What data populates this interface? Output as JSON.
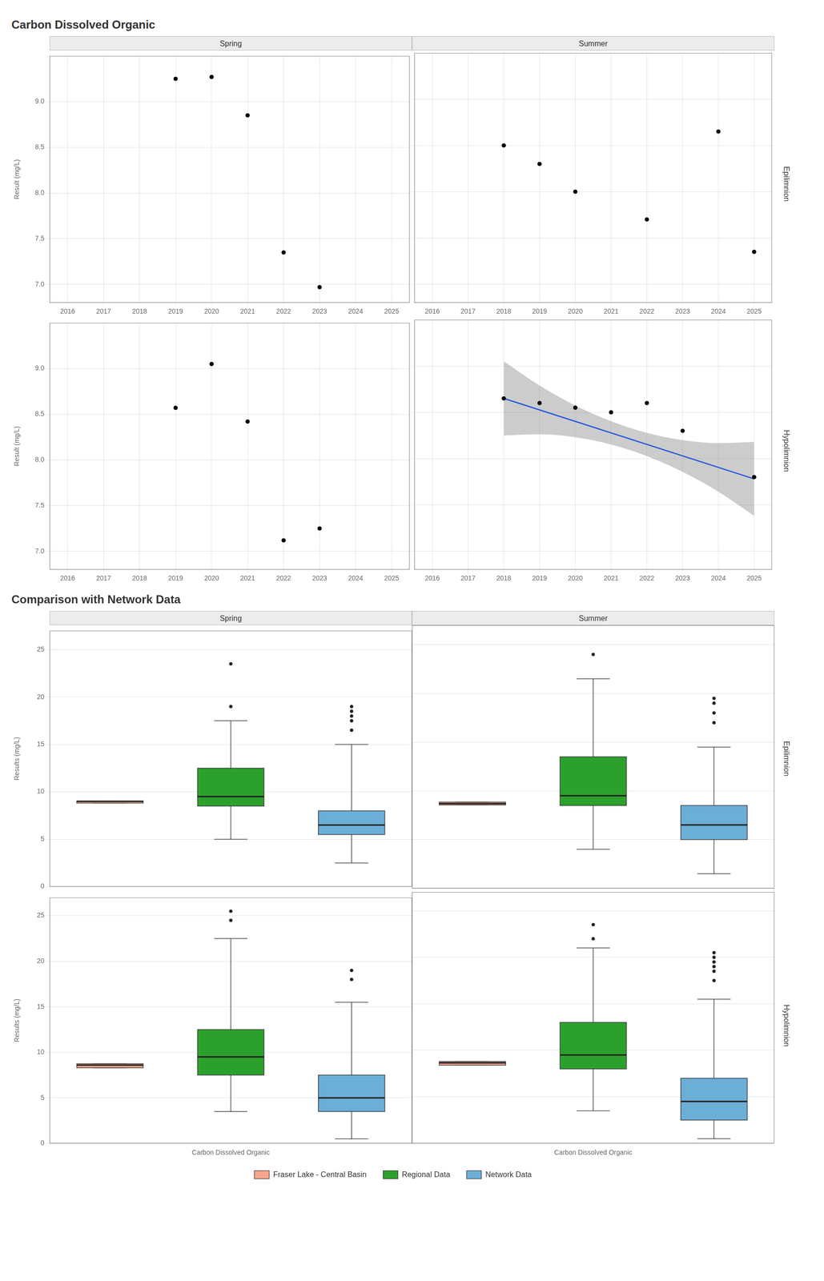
{
  "chart_data": [
    {
      "type": "scatter",
      "title": "Carbon Dissolved Organic",
      "subtitle": "Spring",
      "ylabel": "Result (mg/L)",
      "series": [
        {
          "type": "scatter",
          "color": "#000000",
          "x": [
            2019,
            2020,
            2021,
            2022,
            2023,
            2024
          ],
          "values": [
            9.25,
            9.27,
            8.85,
            7.35,
            6.97,
            null
          ]
        }
      ],
      "xlim": [
        2015.5,
        2025.5
      ],
      "xticks": [
        2016,
        2017,
        2018,
        2019,
        2020,
        2021,
        2022,
        2023,
        2024,
        2025
      ],
      "ylim": [
        6.8,
        9.5
      ],
      "yticks": [
        {
          "value": 7,
          "label": "7.0"
        },
        7.5,
        {
          "value": 8,
          "label": "8.0"
        },
        8.5,
        {
          "value": 9,
          "label": "9.0"
        }
      ],
      "grid": true
    },
    {
      "type": "scatter",
      "subtitle": "Summer",
      "annotations": [
        "Epilimnion"
      ],
      "series": [
        {
          "type": "scatter",
          "color": "#000000",
          "x": [
            2018,
            2019,
            2020,
            2022,
            2024,
            2025
          ],
          "values": [
            8.5,
            8.3,
            8.0,
            7.7,
            8.65,
            7.35
          ]
        }
      ],
      "xlim": [
        2015.5,
        2025.5
      ],
      "xticks": [
        2016,
        2017,
        2018,
        2019,
        2020,
        2021,
        2022,
        2023,
        2024,
        2025
      ],
      "ylim": [
        6.8,
        9.5
      ],
      "yticks": [
        {
          "value": 7,
          "label": "7.0"
        },
        7.5,
        {
          "value": 8,
          "label": "8.0"
        },
        8.5,
        {
          "value": 9,
          "label": "9.0"
        }
      ],
      "grid": true,
      "tick_labels": "x"
    },
    {
      "type": "scatter",
      "ylabel": "Result (mg/L)",
      "series": [
        {
          "type": "scatter",
          "color": "#000000",
          "x": [
            2019,
            2020,
            2021,
            2022,
            2023,
            2024
          ],
          "values": [
            8.57,
            9.05,
            8.42,
            7.12,
            7.25,
            null
          ]
        }
      ],
      "xlim": [
        2015.5,
        2025.5
      ],
      "xticks": [
        2016,
        2017,
        2018,
        2019,
        2020,
        2021,
        2022,
        2023,
        2024,
        2025
      ],
      "ylim": [
        6.8,
        9.5
      ],
      "yticks": [
        {
          "value": 7,
          "label": "7.0"
        },
        7.5,
        {
          "value": 8,
          "label": "8.0"
        },
        8.5,
        {
          "value": 9,
          "label": "9.0"
        }
      ],
      "grid": true
    },
    {
      "type": "scatter",
      "annotations": [
        "Hypolimnion"
      ],
      "series": [
        {
          "type": "scatter",
          "color": "#000000",
          "x": [
            2018,
            2019,
            2020,
            2021,
            2022,
            2023,
            2025
          ],
          "values": [
            8.65,
            8.6,
            8.55,
            8.5,
            8.6,
            8.3,
            7.8
          ]
        },
        {
          "type": "line",
          "color": "#2255dd",
          "x": [
            2018,
            2025
          ],
          "values": [
            8.65,
            7.78
          ]
        },
        {
          "type": "band",
          "color": "#808080",
          "x": [
            2018,
            2019,
            2020,
            2021,
            2022,
            2023,
            2024,
            2025
          ],
          "lower": [
            8.25,
            8.262857,
            8.23,
            8.151429,
            8.027143,
            7.857143,
            7.641429,
            7.38
          ],
          "upper": [
            9.05,
            8.788571,
            8.572857,
            8.402857,
            8.278571,
            8.2,
            8.167143,
            8.18
          ]
        }
      ],
      "xlim": [
        2015.5,
        2025.5
      ],
      "xticks": [
        2016,
        2017,
        2018,
        2019,
        2020,
        2021,
        2022,
        2023,
        2024,
        2025
      ],
      "ylim": [
        6.8,
        9.5
      ],
      "yticks": [
        {
          "value": 7,
          "label": "7.0"
        },
        7.5,
        {
          "value": 8,
          "label": "8.0"
        },
        8.5,
        {
          "value": 9,
          "label": "9.0"
        }
      ],
      "grid": true,
      "tick_labels": "x"
    },
    {
      "type": "box",
      "title": "Comparison with Network Data",
      "subtitle": "Spring",
      "ylabel": "Results (mg/L)",
      "categories": [
        null,
        null,
        null
      ],
      "series": [
        {
          "name": "Fraser Lake - Central Basin",
          "color": "#f4a58a",
          "values": [
            {
              "q1": 8.82,
              "median": 9.0,
              "q3": 9.05,
              "whislo": 8.82,
              "whishi": 9.05,
              "fliers": []
            },
            null,
            null
          ]
        },
        {
          "name": "Regional Data",
          "color": "#2ca02c",
          "values": [
            null,
            {
              "q1": 8.5,
              "median": 9.5,
              "q3": 12.5,
              "whislo": 5.0,
              "whishi": 17.5,
              "fliers": [
                19.0,
                23.5
              ]
            },
            null
          ]
        },
        {
          "name": "Network Data",
          "color": "#6baed6",
          "values": [
            null,
            null,
            {
              "q1": 5.5,
              "median": 6.5,
              "q3": 8.0,
              "whislo": 2.5,
              "whishi": 15.0,
              "fliers": [
                16.5,
                17.5,
                18.0,
                18.5,
                19.0
              ]
            }
          ]
        }
      ],
      "ylim": [
        0,
        27
      ],
      "yticks": [
        0,
        5,
        10,
        15,
        20,
        25
      ],
      "grid": "y",
      "tick_labels": "y"
    },
    {
      "type": "box",
      "subtitle": "Summer",
      "annotations": [
        "Epilimnion"
      ],
      "categories": [
        null,
        null,
        null
      ],
      "series": [
        {
          "name": "Fraser Lake - Central Basin",
          "color": "#f4a58a",
          "values": [
            {
              "q1": 8.55,
              "median": 8.7,
              "q3": 8.85,
              "whislo": 8.55,
              "whishi": 8.85,
              "fliers": []
            },
            null,
            null
          ]
        },
        {
          "name": "Regional Data",
          "color": "#2ca02c",
          "values": [
            null,
            {
              "q1": 8.5,
              "median": 9.5,
              "q3": 13.5,
              "whislo": 4.0,
              "whishi": 21.5,
              "fliers": [
                24.0
              ]
            },
            null
          ]
        },
        {
          "name": "Network Data",
          "color": "#6baed6",
          "values": [
            null,
            null,
            {
              "q1": 5.0,
              "median": 6.5,
              "q3": 8.5,
              "whislo": 1.5,
              "whishi": 14.5,
              "fliers": [
                17.0,
                18.0,
                19.0,
                19.5
              ]
            }
          ]
        }
      ],
      "ylim": [
        0,
        27
      ],
      "yticks": [
        0,
        5,
        10,
        15,
        20,
        25
      ],
      "grid": "y",
      "tick_labels": false
    },
    {
      "type": "box",
      "ylabel": "Results (mg/L)",
      "xlabel": "Carbon Dissolved Organic",
      "categories": [
        null,
        null,
        null
      ],
      "series": [
        {
          "name": "Fraser Lake - Central Basin",
          "color": "#f4a58a",
          "values": [
            {
              "q1": 8.3,
              "median": 8.6,
              "q3": 8.75,
              "whislo": 8.3,
              "whishi": 8.75,
              "fliers": []
            },
            null,
            null
          ]
        },
        {
          "name": "Regional Data",
          "color": "#2ca02c",
          "values": [
            null,
            {
              "q1": 7.5,
              "median": 9.5,
              "q3": 12.5,
              "whislo": 3.5,
              "whishi": 22.5,
              "fliers": [
                24.5,
                25.5
              ]
            },
            null
          ]
        },
        {
          "name": "Network Data",
          "color": "#6baed6",
          "values": [
            null,
            null,
            {
              "q1": 3.5,
              "median": 5.0,
              "q3": 7.5,
              "whislo": 0.5,
              "whishi": 15.5,
              "fliers": [
                18.0,
                19.0
              ]
            }
          ]
        }
      ],
      "ylim": [
        0,
        27
      ],
      "yticks": [
        0,
        5,
        10,
        15,
        20,
        25
      ],
      "grid": "y",
      "tick_labels": "y"
    },
    {
      "type": "box",
      "xlabel": "Carbon Dissolved Organic",
      "annotations": [
        "Hypolimnion"
      ],
      "categories": [
        null,
        null,
        null
      ],
      "series": [
        {
          "name": "Fraser Lake - Central Basin",
          "color": "#f4a58a",
          "values": [
            {
              "q1": 8.4,
              "median": 8.65,
              "q3": 8.8,
              "whislo": 8.4,
              "whishi": 8.8,
              "fliers": []
            },
            null,
            null
          ]
        },
        {
          "name": "Regional Data",
          "color": "#2ca02c",
          "values": [
            null,
            {
              "q1": 8.0,
              "median": 9.5,
              "q3": 13.0,
              "whislo": 3.5,
              "whishi": 21.0,
              "fliers": [
                22.0,
                23.5
              ]
            },
            null
          ]
        },
        {
          "name": "Network Data",
          "color": "#6baed6",
          "values": [
            null,
            null,
            {
              "q1": 2.5,
              "median": 4.5,
              "q3": 7.0,
              "whislo": 0.5,
              "whishi": 15.5,
              "fliers": [
                17.5,
                18.5,
                19.0,
                19.5,
                20.0,
                20.5
              ]
            }
          ]
        }
      ],
      "ylim": [
        0,
        27
      ],
      "yticks": [
        0,
        5,
        10,
        15,
        20,
        25
      ],
      "grid": "y",
      "tick_labels": false,
      "legend": "bottom"
    }
  ]
}
